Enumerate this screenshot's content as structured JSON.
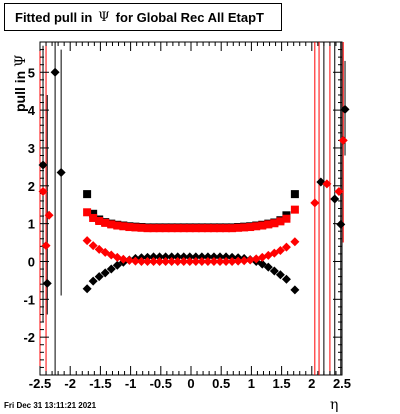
{
  "title": {
    "prefix": "Fitted pull in",
    "psi": "Ψ",
    "suffix": "for Global Rec All EtapT"
  },
  "footer": {
    "timestamp": "Fri Dec 31 13:11:21 2021"
  },
  "chart_data": {
    "type": "scatter",
    "title": "Fitted pull in Ψ for Global Rec All EtapT",
    "xlabel": "η",
    "ylabel": "pull in Ψ",
    "xlim": [
      -2.5,
      2.5
    ],
    "ylim": [
      -3.0,
      5.8
    ],
    "xticks": [
      "-2.5",
      "-2",
      "-1.5",
      "-1",
      "-0.5",
      "0",
      "0.5",
      "1",
      "1.5",
      "2",
      "2.5"
    ],
    "yticks": [
      "-2",
      "-1",
      "0",
      "1",
      "2",
      "3",
      "4",
      "5"
    ],
    "grid": false,
    "legend": "none",
    "colors": {
      "black": "#000000",
      "red": "#ff0000"
    },
    "series": [
      {
        "color": "black",
        "marker": "square",
        "points": [
          {
            "x": -1.72,
            "y": 1.78
          },
          {
            "x": -1.62,
            "y": 1.26
          },
          {
            "x": -1.52,
            "y": 1.11
          },
          {
            "x": -1.42,
            "y": 1.04
          },
          {
            "x": -1.32,
            "y": 1.0
          },
          {
            "x": -1.22,
            "y": 0.97
          },
          {
            "x": -1.12,
            "y": 0.95
          },
          {
            "x": -1.02,
            "y": 0.93
          },
          {
            "x": -0.92,
            "y": 0.92
          },
          {
            "x": -0.82,
            "y": 0.91
          },
          {
            "x": -0.72,
            "y": 0.9
          },
          {
            "x": -0.62,
            "y": 0.9
          },
          {
            "x": -0.52,
            "y": 0.9
          },
          {
            "x": -0.42,
            "y": 0.9
          },
          {
            "x": -0.32,
            "y": 0.9
          },
          {
            "x": -0.22,
            "y": 0.9
          },
          {
            "x": -0.12,
            "y": 0.9
          },
          {
            "x": -0.02,
            "y": 0.9
          },
          {
            "x": 0.08,
            "y": 0.9
          },
          {
            "x": 0.18,
            "y": 0.9
          },
          {
            "x": 0.28,
            "y": 0.9
          },
          {
            "x": 0.38,
            "y": 0.9
          },
          {
            "x": 0.48,
            "y": 0.9
          },
          {
            "x": 0.58,
            "y": 0.9
          },
          {
            "x": 0.68,
            "y": 0.9
          },
          {
            "x": 0.78,
            "y": 0.91
          },
          {
            "x": 0.88,
            "y": 0.92
          },
          {
            "x": 0.98,
            "y": 0.93
          },
          {
            "x": 1.08,
            "y": 0.95
          },
          {
            "x": 1.18,
            "y": 0.97
          },
          {
            "x": 1.28,
            "y": 1.0
          },
          {
            "x": 1.38,
            "y": 1.03
          },
          {
            "x": 1.48,
            "y": 1.09
          },
          {
            "x": 1.58,
            "y": 1.22
          },
          {
            "x": 1.72,
            "y": 1.78
          }
        ]
      },
      {
        "color": "red",
        "marker": "square",
        "points": [
          {
            "x": -1.72,
            "y": 1.3
          },
          {
            "x": -1.62,
            "y": 1.15
          },
          {
            "x": -1.52,
            "y": 1.07
          },
          {
            "x": -1.42,
            "y": 1.02
          },
          {
            "x": -1.32,
            "y": 0.98
          },
          {
            "x": -1.22,
            "y": 0.95
          },
          {
            "x": -1.12,
            "y": 0.93
          },
          {
            "x": -1.02,
            "y": 0.91
          },
          {
            "x": -0.92,
            "y": 0.9
          },
          {
            "x": -0.82,
            "y": 0.89
          },
          {
            "x": -0.72,
            "y": 0.88
          },
          {
            "x": -0.62,
            "y": 0.88
          },
          {
            "x": -0.52,
            "y": 0.88
          },
          {
            "x": -0.42,
            "y": 0.88
          },
          {
            "x": -0.32,
            "y": 0.88
          },
          {
            "x": -0.22,
            "y": 0.88
          },
          {
            "x": -0.12,
            "y": 0.88
          },
          {
            "x": -0.02,
            "y": 0.88
          },
          {
            "x": 0.08,
            "y": 0.88
          },
          {
            "x": 0.18,
            "y": 0.88
          },
          {
            "x": 0.28,
            "y": 0.88
          },
          {
            "x": 0.38,
            "y": 0.88
          },
          {
            "x": 0.48,
            "y": 0.88
          },
          {
            "x": 0.58,
            "y": 0.88
          },
          {
            "x": 0.68,
            "y": 0.88
          },
          {
            "x": 0.78,
            "y": 0.89
          },
          {
            "x": 0.88,
            "y": 0.9
          },
          {
            "x": 0.98,
            "y": 0.91
          },
          {
            "x": 1.08,
            "y": 0.93
          },
          {
            "x": 1.18,
            "y": 0.95
          },
          {
            "x": 1.28,
            "y": 0.98
          },
          {
            "x": 1.38,
            "y": 1.01
          },
          {
            "x": 1.48,
            "y": 1.06
          },
          {
            "x": 1.58,
            "y": 1.13
          },
          {
            "x": 1.72,
            "y": 1.37
          }
        ]
      },
      {
        "color": "black",
        "marker": "diamond",
        "points": [
          {
            "x": -2.45,
            "y": 2.55
          },
          {
            "x": -2.38,
            "y": -0.58
          },
          {
            "x": -2.25,
            "y": 5.0
          },
          {
            "x": -2.15,
            "y": 2.35
          },
          {
            "x": -1.72,
            "y": -0.72
          },
          {
            "x": -1.62,
            "y": -0.52
          },
          {
            "x": -1.52,
            "y": -0.4
          },
          {
            "x": -1.42,
            "y": -0.3
          },
          {
            "x": -1.32,
            "y": -0.2
          },
          {
            "x": -1.22,
            "y": -0.1
          },
          {
            "x": -1.12,
            "y": -0.02
          },
          {
            "x": -1.02,
            "y": 0.04
          },
          {
            "x": -0.92,
            "y": 0.08
          },
          {
            "x": -0.82,
            "y": 0.1
          },
          {
            "x": -0.72,
            "y": 0.11
          },
          {
            "x": -0.62,
            "y": 0.12
          },
          {
            "x": -0.52,
            "y": 0.12
          },
          {
            "x": -0.42,
            "y": 0.12
          },
          {
            "x": -0.32,
            "y": 0.12
          },
          {
            "x": -0.22,
            "y": 0.12
          },
          {
            "x": -0.12,
            "y": 0.12
          },
          {
            "x": -0.02,
            "y": 0.12
          },
          {
            "x": 0.08,
            "y": 0.12
          },
          {
            "x": 0.18,
            "y": 0.12
          },
          {
            "x": 0.28,
            "y": 0.12
          },
          {
            "x": 0.38,
            "y": 0.12
          },
          {
            "x": 0.48,
            "y": 0.12
          },
          {
            "x": 0.58,
            "y": 0.12
          },
          {
            "x": 0.68,
            "y": 0.11
          },
          {
            "x": 0.78,
            "y": 0.1
          },
          {
            "x": 0.88,
            "y": 0.08
          },
          {
            "x": 0.98,
            "y": 0.05
          },
          {
            "x": 1.08,
            "y": 0.0
          },
          {
            "x": 1.18,
            "y": -0.07
          },
          {
            "x": 1.28,
            "y": -0.15
          },
          {
            "x": 1.38,
            "y": -0.25
          },
          {
            "x": 1.48,
            "y": -0.35
          },
          {
            "x": 1.58,
            "y": -0.47
          },
          {
            "x": 1.72,
            "y": -0.75
          },
          {
            "x": 2.15,
            "y": 2.1
          },
          {
            "x": 2.38,
            "y": 1.65
          },
          {
            "x": 2.48,
            "y": 0.98
          },
          {
            "x": 2.55,
            "y": 4.02
          }
        ]
      },
      {
        "color": "red",
        "marker": "diamond",
        "points": [
          {
            "x": -2.45,
            "y": 1.85
          },
          {
            "x": -2.4,
            "y": 0.42
          },
          {
            "x": -2.35,
            "y": 1.22
          },
          {
            "x": -1.72,
            "y": 0.55
          },
          {
            "x": -1.62,
            "y": 0.42
          },
          {
            "x": -1.52,
            "y": 0.32
          },
          {
            "x": -1.42,
            "y": 0.24
          },
          {
            "x": -1.32,
            "y": 0.17
          },
          {
            "x": -1.22,
            "y": 0.11
          },
          {
            "x": -1.12,
            "y": 0.06
          },
          {
            "x": -1.02,
            "y": 0.03
          },
          {
            "x": -0.92,
            "y": 0.01
          },
          {
            "x": -0.82,
            "y": 0.0
          },
          {
            "x": -0.72,
            "y": 0.0
          },
          {
            "x": -0.62,
            "y": 0.0
          },
          {
            "x": -0.52,
            "y": 0.0
          },
          {
            "x": -0.42,
            "y": 0.0
          },
          {
            "x": -0.32,
            "y": 0.0
          },
          {
            "x": -0.22,
            "y": 0.0
          },
          {
            "x": -0.12,
            "y": 0.0
          },
          {
            "x": -0.02,
            "y": 0.0
          },
          {
            "x": 0.08,
            "y": 0.0
          },
          {
            "x": 0.18,
            "y": 0.0
          },
          {
            "x": 0.28,
            "y": 0.0
          },
          {
            "x": 0.38,
            "y": 0.0
          },
          {
            "x": 0.48,
            "y": 0.0
          },
          {
            "x": 0.58,
            "y": 0.0
          },
          {
            "x": 0.68,
            "y": 0.0
          },
          {
            "x": 0.78,
            "y": 0.01
          },
          {
            "x": 0.88,
            "y": 0.02
          },
          {
            "x": 0.98,
            "y": 0.04
          },
          {
            "x": 1.08,
            "y": 0.07
          },
          {
            "x": 1.18,
            "y": 0.11
          },
          {
            "x": 1.28,
            "y": 0.16
          },
          {
            "x": 1.38,
            "y": 0.22
          },
          {
            "x": 1.48,
            "y": 0.29
          },
          {
            "x": 1.58,
            "y": 0.38
          },
          {
            "x": 1.72,
            "y": 0.52
          },
          {
            "x": 2.05,
            "y": 1.55
          },
          {
            "x": 2.25,
            "y": 2.05
          },
          {
            "x": 2.45,
            "y": 1.85
          },
          {
            "x": 2.52,
            "y": 3.2
          }
        ]
      }
    ],
    "error_bars": [
      {
        "color": "black",
        "x": -2.45,
        "y_low": -1.6,
        "y_high": 5.7
      },
      {
        "color": "black",
        "x": -2.38,
        "y_low": -1.4,
        "y_high": 4.4
      },
      {
        "color": "black",
        "x": -2.25,
        "y_low": -3.0,
        "y_high": 5.8
      },
      {
        "color": "black",
        "x": -2.15,
        "y_low": -0.9,
        "y_high": 5.6
      },
      {
        "color": "red",
        "x": -2.5,
        "y_low": -3.0,
        "y_high": 5.8
      },
      {
        "color": "red",
        "x": -2.4,
        "y_low": -3.0,
        "y_high": 5.8
      },
      {
        "color": "black",
        "x": 2.55,
        "y_low": 2.8,
        "y_high": 5.3
      },
      {
        "color": "black",
        "x": 2.2,
        "y_low": -3.0,
        "y_high": 5.8
      },
      {
        "color": "black",
        "x": 2.38,
        "y_low": -3.0,
        "y_high": 5.8
      },
      {
        "color": "black",
        "x": 2.48,
        "y_low": -3.0,
        "y_high": 5.8
      },
      {
        "color": "red",
        "x": 2.05,
        "y_low": -3.0,
        "y_high": 5.8
      },
      {
        "color": "red",
        "x": 2.12,
        "y_low": -3.0,
        "y_high": 5.8
      },
      {
        "color": "red",
        "x": 2.3,
        "y_low": -3.0,
        "y_high": 5.8
      },
      {
        "color": "red",
        "x": 2.52,
        "y_low": 0.5,
        "y_high": 5.8
      }
    ]
  }
}
